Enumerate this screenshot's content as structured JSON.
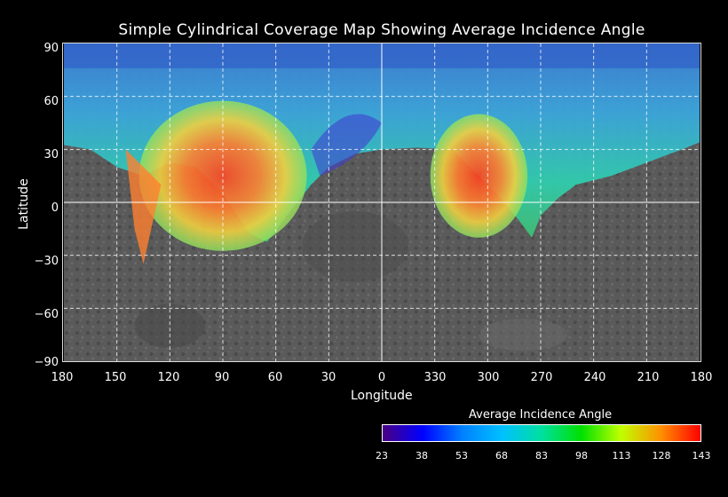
{
  "title": "Simple Cylindrical Coverage Map Showing Average Incidence Angle",
  "x_axis": {
    "label": "Longitude",
    "ticks": [
      "180",
      "150",
      "120",
      "90",
      "60",
      "30",
      "0",
      "330",
      "300",
      "270",
      "240",
      "210",
      "180"
    ]
  },
  "y_axis": {
    "label": "Latitude",
    "ticks": [
      "90",
      "60",
      "30",
      "0",
      "−30",
      "−60",
      "−90"
    ]
  },
  "legend": {
    "title": "Average Incidence Angle",
    "ticks": [
      "23",
      "38",
      "53",
      "68",
      "83",
      "98",
      "113",
      "128",
      "143"
    ],
    "colors": [
      "#4b0082",
      "#0000ff",
      "#0080ff",
      "#00c0ff",
      "#00e0a0",
      "#00e000",
      "#c0ff00",
      "#ff9000",
      "#ff0000"
    ]
  }
}
